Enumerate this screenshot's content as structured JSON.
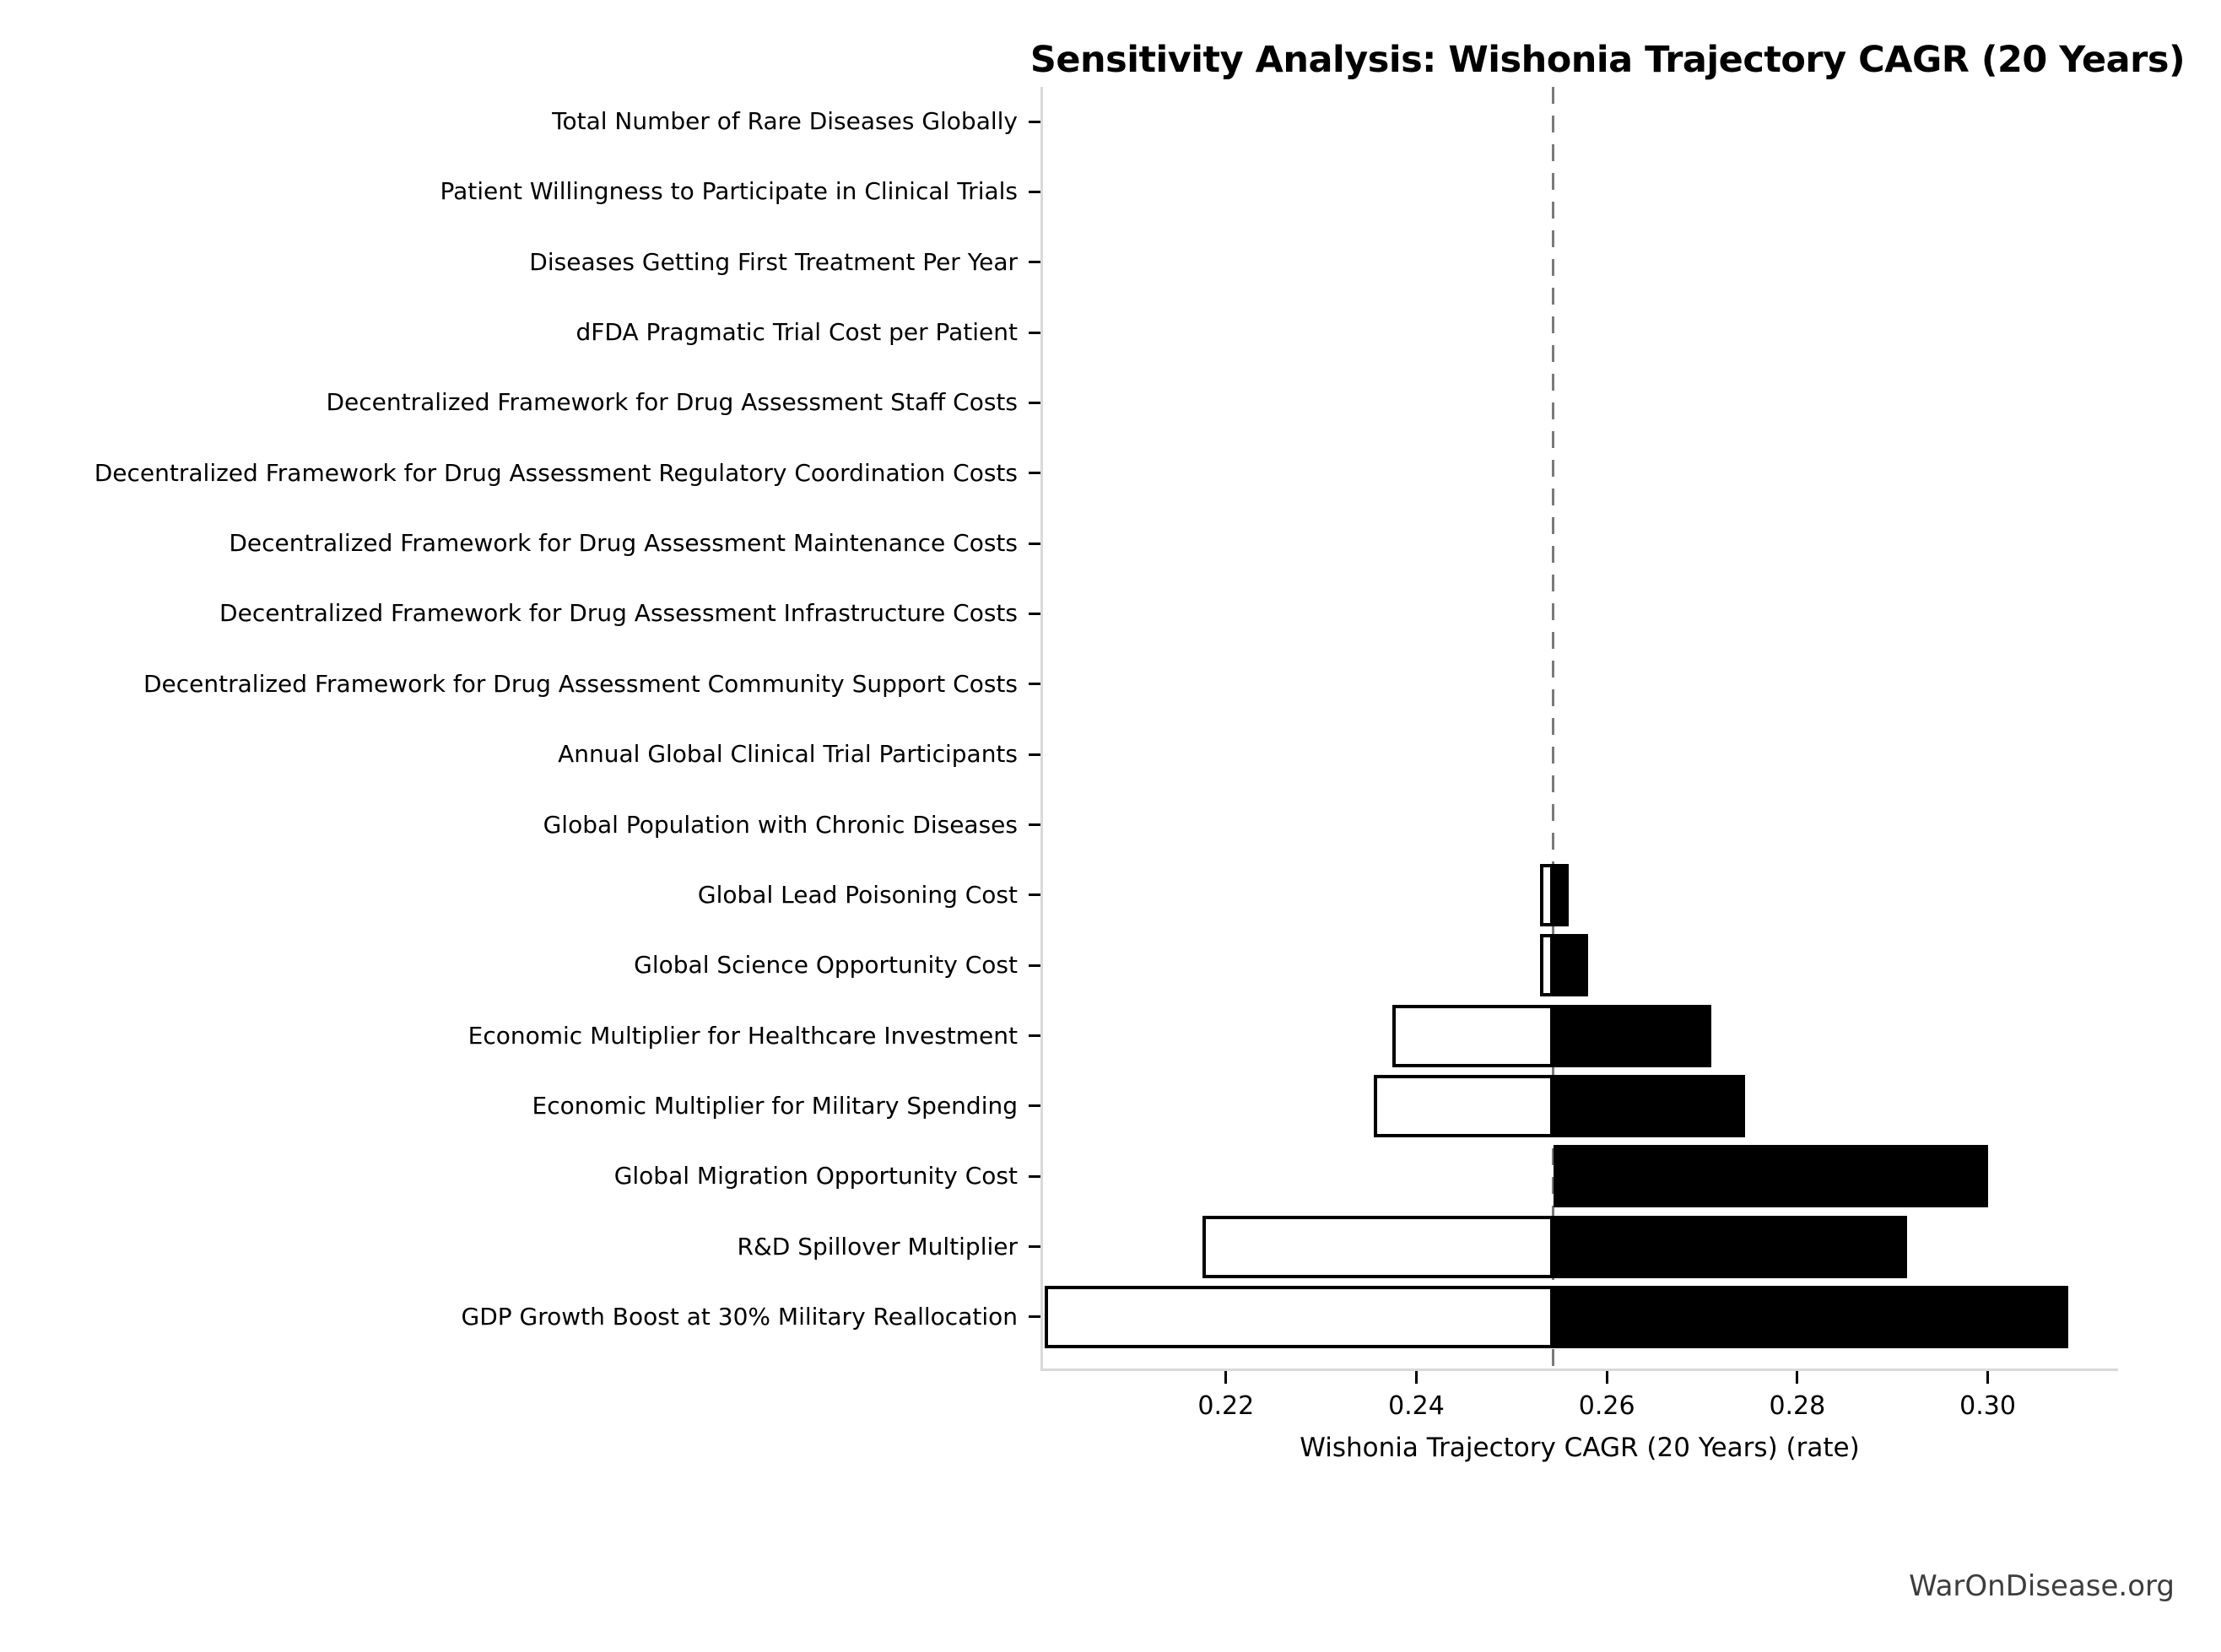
{
  "title": "Sensitivity Analysis: Wishonia Trajectory CAGR (20 Years)",
  "footer": {
    "brand": "WarOnDisease.org"
  },
  "chart_data": {
    "type": "bar",
    "subtype": "tornado-sensitivity",
    "orientation": "horizontal",
    "title": "Sensitivity Analysis: Wishonia Trajectory CAGR (20 Years)",
    "xlabel": "Wishonia Trajectory CAGR (20 Years) (rate)",
    "ylabel": "",
    "grid": false,
    "legend_position": "none",
    "baseline": 0.2544,
    "xlim": [
      0.2007,
      0.3136
    ],
    "xtick_labels": [
      "0.22",
      "0.24",
      "0.26",
      "0.28",
      "0.30"
    ],
    "xtick_values": [
      0.22,
      0.24,
      0.26,
      0.28,
      0.3
    ],
    "bar_style": {
      "low_fill": "#ffffff",
      "low_edge": "#000000",
      "high_fill": "#000000",
      "baseline_line_color": "#7a7a7a",
      "baseline_line_style": "dashed"
    },
    "categories": [
      "Total Number of Rare Diseases Globally",
      "Patient Willingness to Participate in Clinical Trials",
      "Diseases Getting First Treatment Per Year",
      "dFDA Pragmatic Trial Cost per Patient",
      "Decentralized Framework for Drug Assessment Staff Costs",
      "Decentralized Framework for Drug Assessment Regulatory Coordination Costs",
      "Decentralized Framework for Drug Assessment Maintenance Costs",
      "Decentralized Framework for Drug Assessment Infrastructure Costs",
      "Decentralized Framework for Drug Assessment Community Support Costs",
      "Annual Global Clinical Trial Participants",
      "Global Population with Chronic Diseases",
      "Global Lead Poisoning Cost",
      "Global Science Opportunity Cost",
      "Economic Multiplier for Healthcare Investment",
      "Economic Multiplier for Military Spending",
      "Global Migration Opportunity Cost",
      "R&D Spillover Multiplier",
      "GDP Growth Boost at 30% Military Reallocation"
    ],
    "series": [
      {
        "name": "low_value",
        "values": [
          null,
          null,
          null,
          null,
          null,
          null,
          null,
          null,
          null,
          null,
          null,
          0.253,
          0.253,
          0.2375,
          0.2355,
          null,
          0.2175,
          0.201
        ]
      },
      {
        "name": "high_value",
        "values": [
          null,
          null,
          null,
          null,
          null,
          null,
          null,
          null,
          null,
          null,
          null,
          0.256,
          0.258,
          0.271,
          0.2745,
          0.3,
          0.2915,
          0.3085
        ]
      }
    ]
  }
}
